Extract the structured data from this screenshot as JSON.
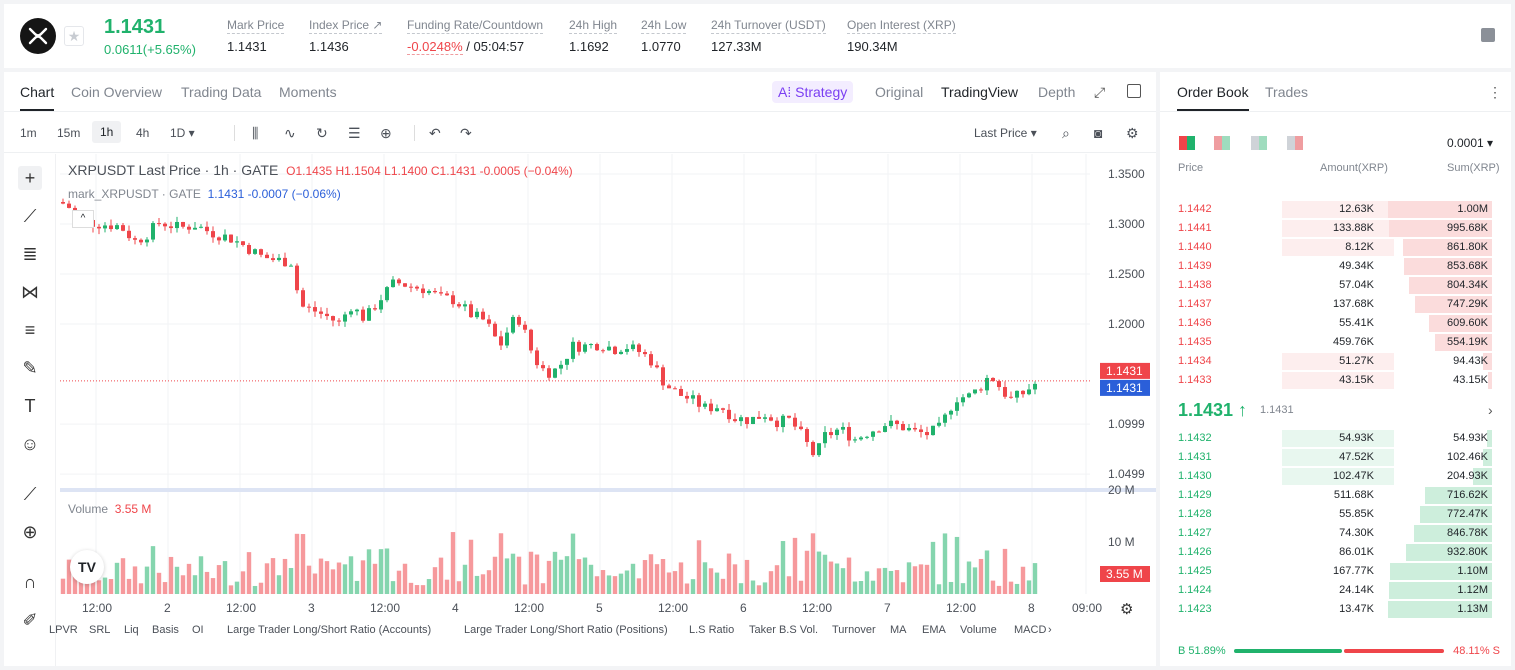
{
  "header": {
    "last_price": "1.1431",
    "change": "0.0611(+5.65%)",
    "stats": [
      {
        "label": "Mark Price",
        "value": "1.1431"
      },
      {
        "label": "Index Price ↗",
        "value": "1.1436"
      },
      {
        "label": "Funding Rate/Countdown",
        "value_red": "-0.0248%",
        "value": " / 05:04:57"
      },
      {
        "label": "24h High",
        "value": "1.1692"
      },
      {
        "label": "24h Low",
        "value": "1.0770"
      },
      {
        "label": "24h Turnover (USDT)",
        "value": "127.33M"
      },
      {
        "label": "Open Interest (XRP)",
        "value": "190.34M"
      }
    ]
  },
  "chart_tabs": {
    "chart": "Chart",
    "coin_overview": "Coin Overview",
    "trading_data": "Trading Data",
    "moments": "Moments",
    "strategy": "A⁞ Strategy",
    "original": "Original",
    "tradingview": "TradingView",
    "depth": "Depth"
  },
  "timeframes": [
    "1m",
    "15m",
    "1h",
    "4h",
    "1D ▾"
  ],
  "last_price_select": "Last Price ▾",
  "legend": {
    "title": "XRPUSDT Last Price · 1h · GATE",
    "ohlc": "O1.1435  H1.1504  L1.1400  C1.1431  -0.0005 (−0.04%)",
    "mark_name": "mark_XRPUSDT · GATE",
    "mark_vals": "1.1431  -0.0007  (−0.06%)",
    "volume_label": "Volume",
    "volume_val": "3.55 M"
  },
  "price_axis": [
    "1.3500",
    "1.3000",
    "1.2500",
    "1.2000",
    "1.0999",
    "1.0499"
  ],
  "price_tags": {
    "last": "1.1431",
    "mark": "1.1431",
    "volume": "3.55 M"
  },
  "volume_axis": [
    "20 M",
    "10 M"
  ],
  "time_axis": [
    "12:00",
    "2",
    "12:00",
    "3",
    "12:00",
    "4",
    "12:00",
    "5",
    "12:00",
    "6",
    "12:00",
    "7",
    "12:00",
    "8",
    "09:00"
  ],
  "indicators": [
    "LPVR",
    "SRL",
    "Liq",
    "Basis",
    "OI",
    "Large Trader Long/Short Ratio (Accounts)",
    "Large Trader Long/Short Ratio (Positions)",
    "L.S Ratio",
    "Taker B.S Vol.",
    "Turnover",
    "MA",
    "EMA",
    "Volume",
    "MACD"
  ],
  "orderbook": {
    "tabs": [
      "Order Book",
      "Trades"
    ],
    "precision": "0.0001 ▾",
    "headers": [
      "Price",
      "Amount(XRP)",
      "Sum(XRP)"
    ],
    "asks": [
      {
        "price": "1.1442",
        "amount": "12.63K",
        "sum": "1.00M",
        "a": 1.0,
        "s": 1.0
      },
      {
        "price": "1.1441",
        "amount": "133.88K",
        "sum": "995.68K",
        "a": 1.0,
        "s": 0.99
      },
      {
        "price": "1.1440",
        "amount": "8.12K",
        "sum": "861.80K",
        "a": 1.0,
        "s": 0.86
      },
      {
        "price": "1.1439",
        "amount": "49.34K",
        "sum": "853.68K",
        "a": 0.0,
        "s": 0.85
      },
      {
        "price": "1.1438",
        "amount": "57.04K",
        "sum": "804.34K",
        "a": 0.0,
        "s": 0.8
      },
      {
        "price": "1.1437",
        "amount": "137.68K",
        "sum": "747.29K",
        "a": 0.0,
        "s": 0.74
      },
      {
        "price": "1.1436",
        "amount": "55.41K",
        "sum": "609.60K",
        "a": 0.0,
        "s": 0.61
      },
      {
        "price": "1.1435",
        "amount": "459.76K",
        "sum": "554.19K",
        "a": 0.0,
        "s": 0.55
      },
      {
        "price": "1.1434",
        "amount": "51.27K",
        "sum": "94.43K",
        "a": 1.0,
        "s": 0.09
      },
      {
        "price": "1.1433",
        "amount": "43.15K",
        "sum": "43.15K",
        "a": 1.0,
        "s": 0.04
      }
    ],
    "mid": "1.1431 ↑",
    "mid_sub": "1.1431",
    "bids": [
      {
        "price": "1.1432",
        "amount": "54.93K",
        "sum": "54.93K",
        "a": 1.0,
        "s": 0.05
      },
      {
        "price": "1.1431",
        "amount": "47.52K",
        "sum": "102.46K",
        "a": 1.0,
        "s": 0.09
      },
      {
        "price": "1.1430",
        "amount": "102.47K",
        "sum": "204.93K",
        "a": 1.0,
        "s": 0.18
      },
      {
        "price": "1.1429",
        "amount": "511.68K",
        "sum": "716.62K",
        "a": 0.0,
        "s": 0.64
      },
      {
        "price": "1.1428",
        "amount": "55.85K",
        "sum": "772.47K",
        "a": 0.0,
        "s": 0.69
      },
      {
        "price": "1.1427",
        "amount": "74.30K",
        "sum": "846.78K",
        "a": 0.0,
        "s": 0.75
      },
      {
        "price": "1.1426",
        "amount": "86.01K",
        "sum": "932.80K",
        "a": 0.0,
        "s": 0.83
      },
      {
        "price": "1.1425",
        "amount": "167.77K",
        "sum": "1.10M",
        "a": 0.0,
        "s": 0.98
      },
      {
        "price": "1.1424",
        "amount": "24.14K",
        "sum": "1.12M",
        "a": 0.0,
        "s": 0.99
      },
      {
        "price": "1.1423",
        "amount": "13.47K",
        "sum": "1.13M",
        "a": 0.0,
        "s": 1.0
      }
    ],
    "buy_pct": "B 51.89%",
    "sell_pct": "48.11% S",
    "buy_frac": 0.5189
  },
  "colors": {
    "up": "#20b26c",
    "down": "#ef454a",
    "mark": "#2b5fd9"
  }
}
